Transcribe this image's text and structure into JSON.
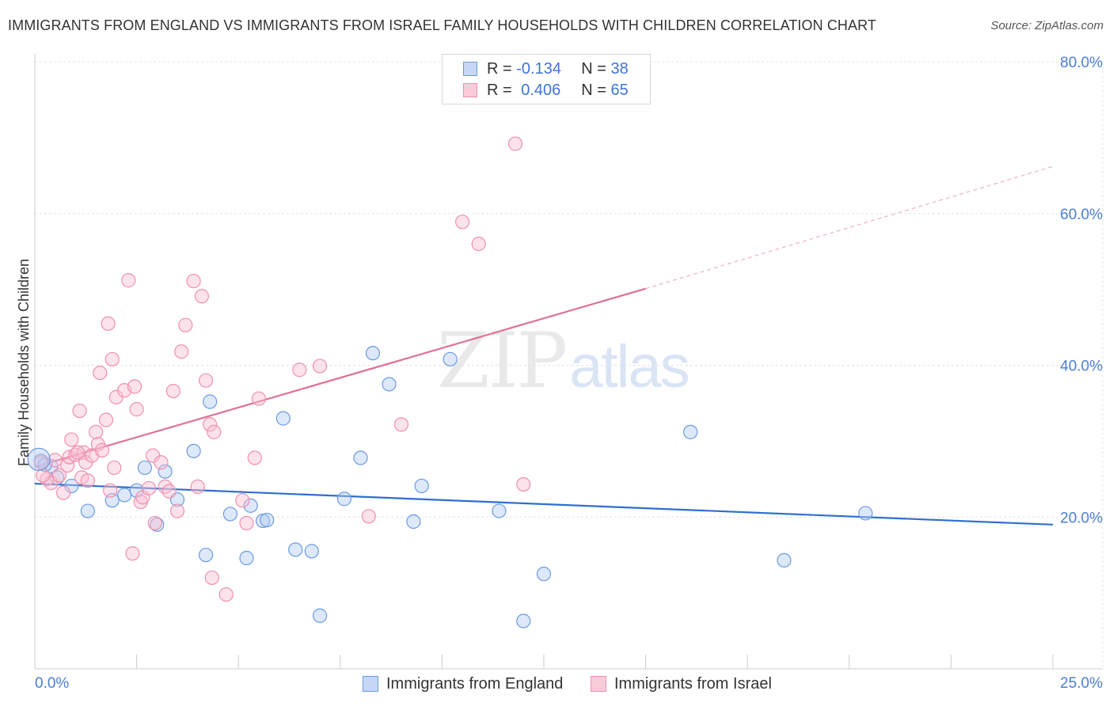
{
  "title": "IMMIGRANTS FROM ENGLAND VS IMMIGRANTS FROM ISRAEL FAMILY HOUSEHOLDS WITH CHILDREN CORRELATION CHART",
  "source": "Source: ZipAtlas.com",
  "watermark": {
    "zip": "ZIP",
    "atlas": "atlas"
  },
  "legend": {
    "england": {
      "r_label": "R = ",
      "r_value": "-0.134",
      "n_label": "N = ",
      "n_value": "38"
    },
    "israel": {
      "r_label": "R = ",
      "r_value": "0.406",
      "n_label": "N = ",
      "n_value": "65"
    }
  },
  "colors": {
    "england": "#6b9be0",
    "israel": "#ee90ae",
    "england_line": "#2f6fce",
    "israel_line": "#e07095",
    "axis_label": "#4a7fd4"
  },
  "chart_data": {
    "type": "scatter",
    "title": "IMMIGRANTS FROM ENGLAND VS IMMIGRANTS FROM ISRAEL FAMILY HOUSEHOLDS WITH CHILDREN CORRELATION CHART",
    "xlabel": "",
    "ylabel": "Family Households with Children",
    "xlim": [
      0,
      25
    ],
    "ylim": [
      0,
      80
    ],
    "x_tick_labels": [
      "0.0%",
      "25.0%"
    ],
    "y_ticks": [
      20,
      40,
      60,
      80
    ],
    "y_tick_labels": [
      "20.0%",
      "40.0%",
      "60.0%",
      "80.0%"
    ],
    "grid": true,
    "series": [
      {
        "name": "Immigrants from England",
        "color": "#6b9be0",
        "points": [
          [
            0.15,
            27.4
          ],
          [
            0.4,
            26.7
          ],
          [
            0.55,
            25.2
          ],
          [
            0.9,
            24.1
          ],
          [
            1.3,
            20.8
          ],
          [
            1.9,
            22.2
          ],
          [
            2.2,
            22.9
          ],
          [
            2.5,
            23.5
          ],
          [
            2.7,
            26.5
          ],
          [
            3.0,
            19.0
          ],
          [
            3.2,
            26.0
          ],
          [
            3.5,
            22.3
          ],
          [
            3.9,
            28.7
          ],
          [
            4.2,
            15.0
          ],
          [
            4.3,
            35.2
          ],
          [
            4.8,
            20.4
          ],
          [
            5.2,
            14.6
          ],
          [
            5.3,
            21.5
          ],
          [
            5.6,
            19.5
          ],
          [
            5.7,
            19.6
          ],
          [
            6.1,
            33.0
          ],
          [
            6.4,
            15.7
          ],
          [
            6.8,
            15.5
          ],
          [
            7.0,
            7.0
          ],
          [
            7.6,
            22.4
          ],
          [
            8.0,
            27.8
          ],
          [
            8.3,
            41.6
          ],
          [
            8.7,
            37.5
          ],
          [
            9.3,
            19.4
          ],
          [
            9.5,
            24.1
          ],
          [
            10.2,
            40.8
          ],
          [
            11.4,
            20.8
          ],
          [
            12.0,
            6.3
          ],
          [
            12.5,
            12.5
          ],
          [
            16.1,
            31.2
          ],
          [
            18.4,
            14.3
          ],
          [
            20.4,
            20.5
          ],
          [
            0.25,
            26.9
          ]
        ],
        "trend": {
          "x": [
            0,
            25
          ],
          "y": [
            24.4,
            19.0
          ]
        }
      },
      {
        "name": "Immigrants from Israel",
        "color": "#ee90ae",
        "points": [
          [
            0.15,
            27.2
          ],
          [
            0.3,
            25.0
          ],
          [
            0.4,
            24.5
          ],
          [
            0.5,
            27.5
          ],
          [
            0.6,
            25.5
          ],
          [
            0.7,
            23.2
          ],
          [
            0.8,
            26.8
          ],
          [
            0.85,
            27.9
          ],
          [
            0.9,
            30.2
          ],
          [
            1.0,
            28.2
          ],
          [
            1.1,
            34.0
          ],
          [
            1.15,
            25.2
          ],
          [
            1.2,
            28.5
          ],
          [
            1.25,
            27.2
          ],
          [
            1.3,
            24.8
          ],
          [
            1.4,
            28.1
          ],
          [
            1.5,
            31.2
          ],
          [
            1.55,
            29.6
          ],
          [
            1.6,
            39.0
          ],
          [
            1.65,
            28.8
          ],
          [
            1.75,
            32.8
          ],
          [
            1.8,
            45.5
          ],
          [
            1.85,
            23.5
          ],
          [
            1.9,
            40.8
          ],
          [
            1.95,
            26.5
          ],
          [
            2.0,
            35.8
          ],
          [
            2.2,
            36.7
          ],
          [
            2.3,
            51.2
          ],
          [
            2.4,
            15.2
          ],
          [
            2.45,
            37.2
          ],
          [
            2.5,
            34.2
          ],
          [
            2.6,
            22.0
          ],
          [
            2.65,
            22.6
          ],
          [
            2.8,
            23.8
          ],
          [
            2.9,
            28.1
          ],
          [
            2.95,
            19.2
          ],
          [
            3.1,
            27.2
          ],
          [
            3.2,
            24.0
          ],
          [
            3.3,
            23.4
          ],
          [
            3.4,
            36.6
          ],
          [
            3.5,
            20.8
          ],
          [
            3.6,
            41.8
          ],
          [
            3.7,
            45.3
          ],
          [
            3.9,
            51.1
          ],
          [
            4.0,
            24.0
          ],
          [
            4.1,
            49.1
          ],
          [
            4.2,
            38.0
          ],
          [
            4.3,
            32.2
          ],
          [
            4.35,
            12.0
          ],
          [
            4.4,
            31.2
          ],
          [
            4.7,
            9.8
          ],
          [
            5.1,
            22.2
          ],
          [
            5.2,
            19.2
          ],
          [
            5.4,
            27.8
          ],
          [
            5.5,
            35.6
          ],
          [
            6.5,
            39.4
          ],
          [
            7.0,
            39.9
          ],
          [
            8.2,
            20.1
          ],
          [
            9.0,
            32.2
          ],
          [
            10.5,
            58.9
          ],
          [
            10.9,
            56.0
          ],
          [
            11.8,
            69.2
          ],
          [
            12.0,
            24.3
          ],
          [
            0.2,
            25.5
          ],
          [
            1.05,
            28.5
          ]
        ],
        "trend": {
          "x": [
            0,
            15
          ],
          "y": [
            26.6,
            50.1
          ]
        },
        "trend_dashed": {
          "x": [
            15,
            25
          ],
          "y": [
            50.1,
            66.2
          ]
        }
      }
    ]
  },
  "bottom_legend": {
    "england": "Immigrants from England",
    "israel": "Immigrants from Israel"
  }
}
